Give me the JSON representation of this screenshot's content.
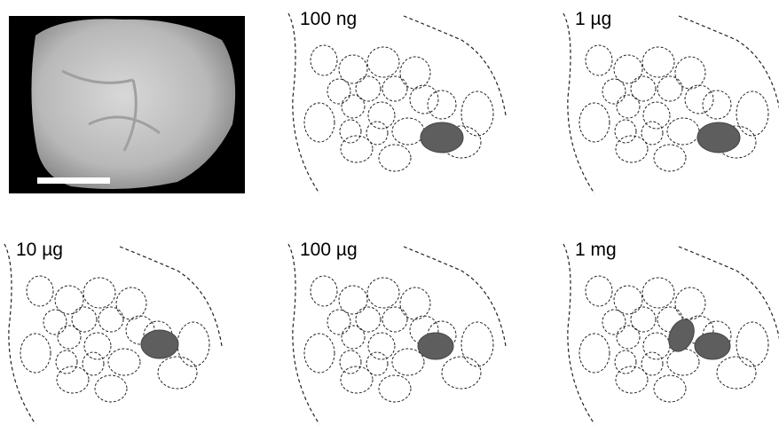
{
  "panels": [
    {
      "label": "100 ng"
    },
    {
      "label": "1 µg"
    },
    {
      "label": "10 µg"
    },
    {
      "label": "100 µg"
    },
    {
      "label": "1 mg"
    }
  ]
}
